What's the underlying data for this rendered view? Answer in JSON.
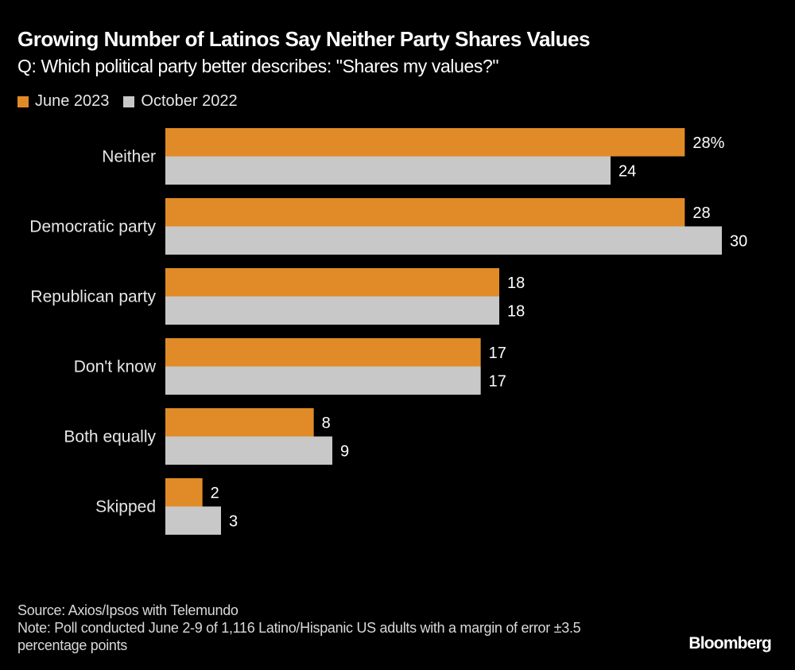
{
  "chart_data": {
    "type": "bar",
    "orientation": "horizontal",
    "title": "Growing Number of Latinos Say Neither Party Shares Values",
    "subtitle": "Q: Which political party better describes: \"Shares my values?\"",
    "categories": [
      "Neither",
      "Democratic party",
      "Republican party",
      "Don't know",
      "Both equally",
      "Skipped"
    ],
    "series": [
      {
        "name": "June 2023",
        "color": "#e08b27",
        "values": [
          28,
          28,
          18,
          17,
          8,
          2
        ]
      },
      {
        "name": "October 2022",
        "color": "#c8c8c8",
        "values": [
          24,
          30,
          18,
          17,
          9,
          3
        ]
      }
    ],
    "value_unit": "%",
    "xlim": [
      0,
      30
    ],
    "grid": false,
    "legend_position": "top-left",
    "xlabel": "",
    "ylabel": ""
  },
  "footer": {
    "source": "Source: Axios/Ipsos with Telemundo",
    "note": "Note: Poll conducted June 2-9 of 1,116 Latino/Hispanic US adults with a margin of error ±3.5 percentage points"
  },
  "logo": "Bloomberg"
}
